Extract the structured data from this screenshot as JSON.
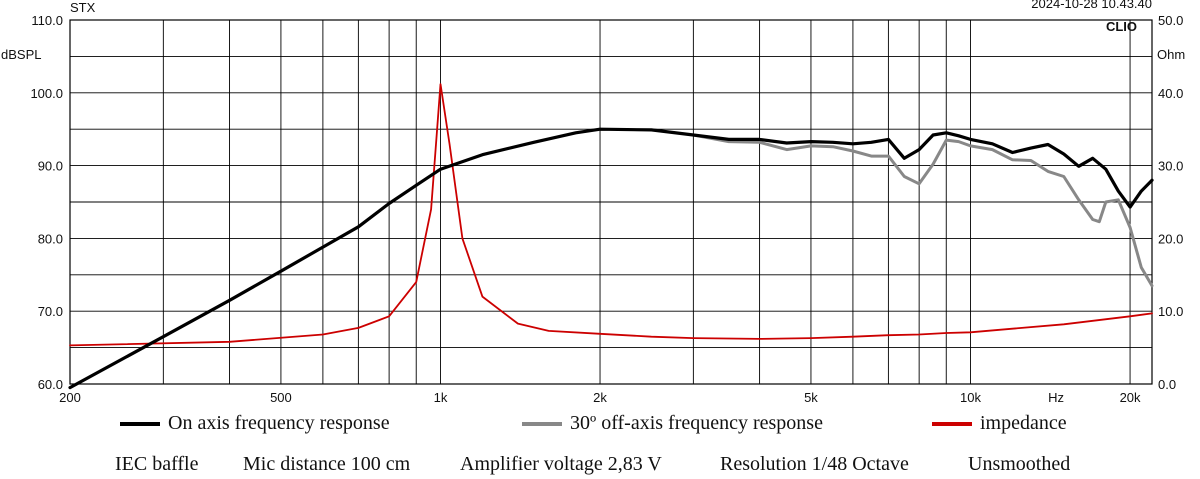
{
  "header": {
    "brand": "STX",
    "timestamp": "2024-10-28 10.43.40",
    "software": "CLIO",
    "left_unit": "dBSPL",
    "right_unit": "Ohm",
    "x_unit": "Hz"
  },
  "chart_data": {
    "type": "line",
    "title": "",
    "x_scale": "log",
    "xlim": [
      200,
      22000
    ],
    "ylim_left": [
      60,
      110
    ],
    "ylim_right": [
      0,
      50
    ],
    "ylabel_left": "dBSPL",
    "ylabel_right": "Ohm",
    "xlabel": "Hz",
    "grid": true,
    "x_tick_labels": [
      {
        "f": 200,
        "label": "200"
      },
      {
        "f": 500,
        "label": "500"
      },
      {
        "f": 1000,
        "label": "1k"
      },
      {
        "f": 2000,
        "label": "2k"
      },
      {
        "f": 5000,
        "label": "5k"
      },
      {
        "f": 10000,
        "label": "10k"
      },
      {
        "f": 14500,
        "label": "Hz"
      },
      {
        "f": 20000,
        "label": "20k"
      }
    ],
    "y_left_tick_labels": [
      "60.0",
      "70.0",
      "80.0",
      "90.0",
      "100.0",
      "110.0"
    ],
    "y_right_tick_labels": [
      "0.0",
      "10.0",
      "20.0",
      "30.0",
      "40.0",
      "50.0"
    ],
    "series": [
      {
        "name": "On axis frequency response",
        "axis": "left",
        "color": "#000000",
        "x": [
          200,
          300,
          400,
          500,
          600,
          700,
          800,
          900,
          1000,
          1200,
          1500,
          1800,
          2000,
          2500,
          3000,
          3500,
          4000,
          4500,
          5000,
          5500,
          6000,
          6500,
          7000,
          7500,
          8000,
          8500,
          9000,
          9500,
          10000,
          11000,
          12000,
          13000,
          14000,
          15000,
          16000,
          17000,
          18000,
          19000,
          20000,
          21000,
          22000
        ],
        "y": [
          59.5,
          66.5,
          71.5,
          75.5,
          78.8,
          81.6,
          84.8,
          87.3,
          89.5,
          91.5,
          93.2,
          94.5,
          95.0,
          94.9,
          94.2,
          93.6,
          93.6,
          93.1,
          93.3,
          93.2,
          93.0,
          93.2,
          93.6,
          91.0,
          92.2,
          94.2,
          94.5,
          94.1,
          93.6,
          93.0,
          91.8,
          92.4,
          92.9,
          91.6,
          89.9,
          91.0,
          89.5,
          86.5,
          84.3,
          86.5,
          88.0
        ]
      },
      {
        "name": "30º off-axis frequency response",
        "axis": "left",
        "color": "#888888",
        "x": [
          3000,
          3500,
          4000,
          4500,
          5000,
          5500,
          6000,
          6500,
          7000,
          7500,
          8000,
          8500,
          9000,
          9500,
          10000,
          11000,
          12000,
          13000,
          14000,
          15000,
          16000,
          17000,
          17500,
          18000,
          19000,
          20000,
          21000,
          22000
        ],
        "y": [
          94.2,
          93.3,
          93.2,
          92.2,
          92.7,
          92.6,
          92.0,
          91.3,
          91.3,
          88.5,
          87.5,
          90.2,
          93.5,
          93.3,
          92.7,
          92.2,
          90.8,
          90.7,
          89.2,
          88.5,
          85.3,
          82.6,
          82.3,
          85.0,
          85.3,
          81.5,
          76.0,
          73.5
        ]
      },
      {
        "name": "impedance",
        "axis": "right",
        "color": "#cc0000",
        "x": [
          200,
          400,
          600,
          700,
          800,
          900,
          960,
          1000,
          1040,
          1100,
          1200,
          1400,
          1600,
          2000,
          2500,
          3000,
          4000,
          5000,
          6000,
          7000,
          8000,
          9000,
          10000,
          12000,
          15000,
          20000,
          22000
        ],
        "y": [
          5.3,
          5.8,
          6.8,
          7.7,
          9.3,
          14.0,
          24.0,
          41.2,
          33.0,
          20.0,
          12.0,
          8.3,
          7.3,
          6.9,
          6.5,
          6.3,
          6.2,
          6.3,
          6.5,
          6.7,
          6.8,
          7.0,
          7.1,
          7.6,
          8.2,
          9.3,
          9.7
        ]
      }
    ]
  },
  "legend": [
    {
      "label": "On axis frequency response",
      "color": "#000000"
    },
    {
      "label": "30º off-axis frequency response",
      "color": "#888888"
    },
    {
      "label": "impedance",
      "color": "#cc0000"
    }
  ],
  "notes": [
    "IEC baffle",
    "Mic distance 100 cm",
    "Amplifier voltage 2,83 V",
    "Resolution 1/48 Octave",
    "Unsmoothed"
  ]
}
